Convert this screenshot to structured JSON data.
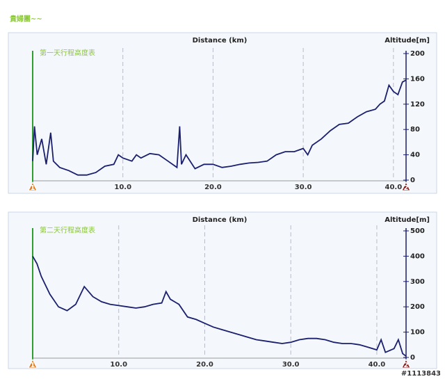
{
  "header": {
    "title": "貴婦團~~"
  },
  "chart_data": [
    {
      "type": "line",
      "title": "第一天行程高度表",
      "x_label": "Distance (km)",
      "y_label": "Altitude[m]",
      "x": [
        0,
        0.2,
        0.5,
        1,
        1.5,
        2,
        2.3,
        3,
        4,
        5,
        6,
        7,
        8,
        9,
        9.5,
        10,
        11,
        11.5,
        12,
        13,
        14,
        15,
        16,
        16.3,
        16.5,
        17,
        18,
        19,
        20,
        21,
        22,
        23,
        24,
        25,
        26,
        27,
        28,
        29,
        30,
        30.5,
        31,
        32,
        33,
        34,
        35,
        36,
        37,
        38,
        38.5,
        39,
        39.5,
        40,
        40.5,
        41,
        41.4
      ],
      "series": [
        {
          "color": "#1a1f6e",
          "values": [
            30,
            85,
            40,
            65,
            25,
            75,
            30,
            20,
            15,
            8,
            8,
            12,
            22,
            25,
            40,
            35,
            30,
            40,
            35,
            42,
            40,
            30,
            20,
            85,
            25,
            40,
            18,
            25,
            25,
            20,
            22,
            25,
            27,
            28,
            30,
            40,
            45,
            45,
            50,
            40,
            55,
            65,
            78,
            88,
            90,
            100,
            108,
            112,
            120,
            125,
            150,
            140,
            135,
            155,
            158
          ]
        }
      ],
      "xlim": [
        0,
        41.4
      ],
      "ylim": [
        0,
        200
      ],
      "xticks": [
        {
          "value": 10,
          "label": "10.0"
        },
        {
          "value": 20,
          "label": "20.0"
        },
        {
          "value": 30,
          "label": "30.0"
        },
        {
          "value": 40,
          "label": "40.0"
        }
      ],
      "yticks": [
        0,
        40,
        80,
        120,
        160,
        200
      ],
      "grid": "x",
      "start_label": "1",
      "end_label": "2"
    },
    {
      "type": "line",
      "title": "第二天行程高度表",
      "x_label": "Distance (km)",
      "y_label": "Altitude[m]",
      "x": [
        0,
        0.5,
        1,
        2,
        3,
        4,
        5,
        6,
        7,
        8,
        9,
        10,
        11,
        12,
        13,
        14,
        15,
        15.5,
        16,
        17,
        18,
        19,
        20,
        21,
        22,
        23,
        24,
        25,
        26,
        27,
        28,
        29,
        30,
        31,
        32,
        33,
        34,
        35,
        36,
        37,
        38,
        39,
        40,
        40.5,
        41,
        42,
        42.5,
        43,
        43.4
      ],
      "series": [
        {
          "color": "#1a1f6e",
          "values": [
            400,
            370,
            320,
            250,
            200,
            185,
            210,
            280,
            240,
            220,
            210,
            205,
            200,
            195,
            200,
            210,
            215,
            260,
            230,
            210,
            160,
            150,
            135,
            120,
            110,
            100,
            90,
            80,
            70,
            65,
            60,
            55,
            60,
            70,
            75,
            75,
            70,
            60,
            55,
            55,
            50,
            40,
            30,
            70,
            20,
            35,
            70,
            15,
            5
          ]
        }
      ],
      "xlim": [
        0,
        43.4
      ],
      "ylim": [
        0,
        500
      ],
      "xticks": [
        {
          "value": 10,
          "label": "10.0"
        },
        {
          "value": 20,
          "label": "20.0"
        },
        {
          "value": 30,
          "label": "30.0"
        },
        {
          "value": 40,
          "label": "40.0"
        }
      ],
      "yticks": [
        0,
        100,
        200,
        300,
        400,
        500
      ],
      "grid": "x",
      "start_label": "1",
      "end_label": "2"
    }
  ],
  "watermark": "#1113843"
}
